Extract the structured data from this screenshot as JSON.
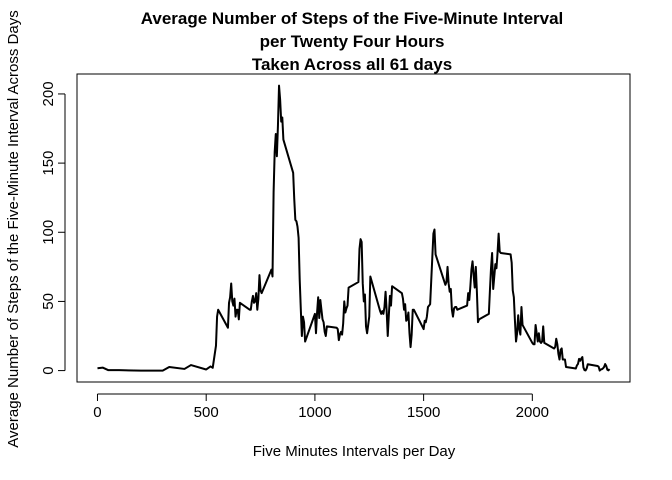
{
  "chart_data": {
    "type": "line",
    "title": [
      "Average Number of Steps of the Five-Minute Interval",
      "per Twenty Four Hours",
      "Taken Across all 61 days"
    ],
    "x_label": "Five Minutes Intervals per Day",
    "y_label": "Average Number of Steps of the Five-Minute Interval Across Days",
    "color": "#000000",
    "xlim": [
      -94.2,
      2449.2
    ],
    "xticks": [
      0,
      500,
      1000,
      1500,
      2000
    ],
    "ylim": [
      -8.25,
      214.42
    ],
    "yticks": [
      0,
      50,
      100,
      150,
      200
    ],
    "x": [
      0,
      25,
      50,
      100,
      200,
      300,
      330,
      400,
      430,
      500,
      520,
      530,
      545,
      550,
      555,
      600,
      605,
      610,
      615,
      620,
      625,
      630,
      635,
      640,
      645,
      650,
      655,
      700,
      705,
      710,
      715,
      720,
      725,
      730,
      735,
      740,
      745,
      750,
      755,
      800,
      805,
      810,
      815,
      820,
      825,
      830,
      835,
      840,
      845,
      850,
      855,
      900,
      905,
      910,
      915,
      920,
      925,
      930,
      935,
      940,
      945,
      950,
      955,
      1000,
      1005,
      1010,
      1015,
      1020,
      1025,
      1030,
      1035,
      1040,
      1045,
      1050,
      1055,
      1100,
      1105,
      1110,
      1115,
      1120,
      1125,
      1130,
      1135,
      1140,
      1145,
      1150,
      1155,
      1200,
      1205,
      1210,
      1215,
      1220,
      1225,
      1230,
      1235,
      1240,
      1245,
      1250,
      1255,
      1300,
      1305,
      1310,
      1315,
      1320,
      1325,
      1330,
      1335,
      1340,
      1345,
      1350,
      1355,
      1400,
      1405,
      1410,
      1415,
      1420,
      1425,
      1430,
      1435,
      1440,
      1445,
      1450,
      1455,
      1500,
      1505,
      1510,
      1515,
      1520,
      1525,
      1530,
      1535,
      1540,
      1545,
      1550,
      1555,
      1600,
      1605,
      1610,
      1615,
      1620,
      1625,
      1630,
      1635,
      1640,
      1645,
      1650,
      1655,
      1700,
      1705,
      1710,
      1715,
      1720,
      1725,
      1730,
      1735,
      1740,
      1745,
      1750,
      1755,
      1800,
      1805,
      1810,
      1815,
      1820,
      1825,
      1830,
      1835,
      1840,
      1845,
      1850,
      1855,
      1900,
      1905,
      1910,
      1915,
      1920,
      1925,
      1930,
      1935,
      1940,
      1945,
      1950,
      1955,
      2000,
      2005,
      2010,
      2015,
      2020,
      2025,
      2030,
      2035,
      2040,
      2045,
      2050,
      2055,
      2100,
      2105,
      2110,
      2115,
      2120,
      2125,
      2130,
      2135,
      2140,
      2145,
      2150,
      2155,
      2200,
      2205,
      2210,
      2215,
      2220,
      2225,
      2230,
      2235,
      2240,
      2245,
      2250,
      2255,
      2300,
      2305,
      2310,
      2315,
      2320,
      2325,
      2330,
      2335,
      2340,
      2345,
      2350,
      2355
    ],
    "values": [
      1.7,
      2.1,
      0.3,
      0.3,
      0,
      0,
      2.6,
      1.2,
      4,
      0.8,
      3,
      2,
      18,
      39,
      44,
      31,
      49,
      53,
      63,
      50,
      47,
      52,
      39,
      44,
      44,
      37,
      49,
      44,
      44,
      50,
      54,
      49,
      50,
      56,
      44,
      52,
      69,
      58,
      56,
      73,
      68,
      129,
      158,
      171,
      155,
      177,
      206,
      196,
      180,
      183,
      167,
      143,
      124,
      109,
      108,
      104,
      96,
      66,
      45,
      25,
      39,
      35,
      21,
      41,
      27,
      42,
      53,
      38,
      51,
      44,
      37,
      35,
      28,
      25,
      32,
      31,
      30,
      22,
      26,
      28,
      26,
      34,
      50,
      42,
      45,
      47,
      60,
      64,
      88,
      95,
      93,
      63,
      50,
      55,
      32,
      27,
      33,
      39,
      68,
      43,
      41,
      43,
      41,
      46,
      57,
      43,
      25,
      40,
      54,
      47,
      61,
      56,
      52,
      44,
      48,
      36,
      37,
      42,
      27,
      17,
      26,
      44,
      44,
      30,
      36,
      35,
      39,
      46,
      47,
      48,
      65,
      82,
      99,
      102,
      84,
      62,
      64,
      75,
      63,
      57,
      59,
      44,
      39,
      45,
      46,
      46,
      44,
      47,
      56,
      51,
      61,
      73,
      79,
      69,
      60,
      75,
      57,
      35,
      37,
      41,
      58,
      74,
      85,
      59,
      68,
      77,
      74,
      85,
      99,
      86,
      85,
      84,
      78,
      58,
      53,
      36,
      21,
      27,
      40,
      30,
      26,
      46,
      33,
      20,
      19,
      19,
      33,
      27,
      21,
      27,
      21,
      20,
      21,
      32,
      20,
      16,
      17,
      23,
      19,
      12,
      8,
      15,
      16,
      8,
      8,
      8,
      2.6,
      1.5,
      3.7,
      4.8,
      8.5,
      7.1,
      8.7,
      9.8,
      2.2,
      0.3,
      0.1,
      1.6,
      4.6,
      3.3,
      2.8,
      0,
      0.8,
      1,
      1.6,
      2.6,
      4.7,
      3.3,
      0.6,
      0.2,
      1.1
    ]
  }
}
